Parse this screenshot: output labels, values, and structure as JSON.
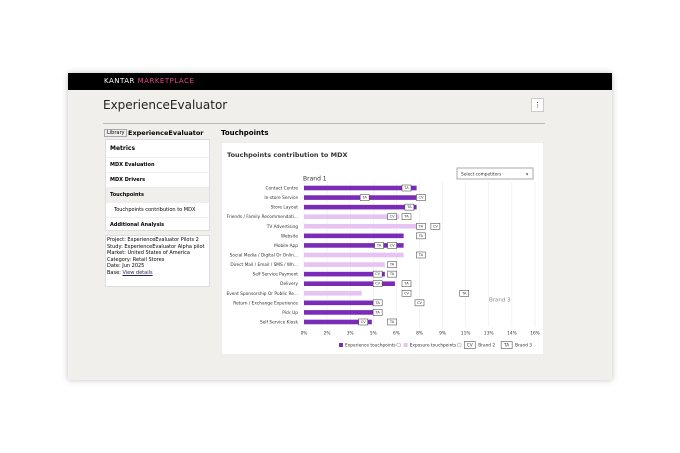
{
  "header": {
    "brand": "KANTAR",
    "product": "MARKETPLACE"
  },
  "page_title": "ExperienceEvaluator",
  "breadcrumb": [
    "Library",
    "ExperienceEvaluator"
  ],
  "sidebar": {
    "title": "Metrics",
    "items": [
      "MDX Evaluation",
      "MDX Drivers",
      "Touchpoints",
      "Touchpoints contribution to MDX",
      "Additional Analysis"
    ]
  },
  "details": [
    {
      "label": "Project:",
      "value": "ExperienceEvaluator Pilots 2"
    },
    {
      "label": "Study:",
      "value": "ExperienceEvaluator Alpha pilot"
    },
    {
      "label": "Market:",
      "value": "United States of America"
    },
    {
      "label": "Category:",
      "value": "Retail Stores"
    },
    {
      "label": "Date:",
      "value": "Jun 2025"
    },
    {
      "label": "Base:",
      "value": "View details"
    }
  ],
  "section_title": "Touchpoints",
  "chart_data": {
    "type": "bar",
    "orientation": "horizontal",
    "title": "Touchpoints contribution to MDX",
    "dropdown": "Select competitors",
    "group_label": "Brand 1",
    "annotation": "Brand 3",
    "categories": [
      "Contact Centre",
      "In-store Service",
      "Store Layout",
      "Friends / Family Recommendati...",
      "TV Advertising",
      "Website",
      "Mobile App",
      "Social Media / Digital Or Onlin...",
      "Direct Mail / Email / SMS / Wh...",
      "Self Service Payment",
      "Delivery",
      "Event Sponsorship Or Public Re...",
      "Return / Exchange Experience",
      "Pick Up",
      "Self Service Kiosk"
    ],
    "series": [
      {
        "name": "Experience touchpoints",
        "kind": "bar",
        "color": "#7a2bb8",
        "values": [
          7.8,
          7.8,
          7.8,
          null,
          null,
          6.9,
          6.9,
          null,
          null,
          5.6,
          6.3,
          null,
          4.9,
          4.9,
          4.7
        ]
      },
      {
        "name": "Exposure touchpoints",
        "kind": "bar",
        "color": "#e6c3f2",
        "values": [
          null,
          null,
          null,
          6.6,
          7.8,
          null,
          null,
          6.9,
          5.6,
          null,
          null,
          4.0,
          null,
          null,
          null
        ]
      },
      {
        "name": "Brand 2",
        "kind": "marker",
        "marker": "CV",
        "values": [
          null,
          8.1,
          null,
          6.1,
          9.1,
          null,
          6.1,
          null,
          null,
          5.1,
          5.1,
          7.1,
          8.0,
          null,
          4.1
        ]
      },
      {
        "name": "Brand 3",
        "kind": "marker",
        "marker": "TA",
        "values": [
          7.1,
          4.2,
          7.3,
          7.1,
          8.1,
          8.1,
          5.2,
          8.1,
          6.1,
          6.1,
          7.1,
          11.1,
          5.1,
          5.1,
          6.1
        ]
      }
    ],
    "xlim": [
      0,
      16
    ],
    "xticks": [
      {
        "value": 0,
        "label": "0%"
      },
      {
        "value": 1.6,
        "label": "2%"
      },
      {
        "value": 3.2,
        "label": "3%"
      },
      {
        "value": 4.8,
        "label": "5%"
      },
      {
        "value": 6.4,
        "label": "6%"
      },
      {
        "value": 8,
        "label": "8%"
      },
      {
        "value": 9.6,
        "label": "9%"
      },
      {
        "value": 11.2,
        "label": "11%"
      },
      {
        "value": 12.8,
        "label": "13%"
      },
      {
        "value": 14.4,
        "label": "14%"
      },
      {
        "value": 16,
        "label": "16%"
      }
    ],
    "grid": true
  }
}
